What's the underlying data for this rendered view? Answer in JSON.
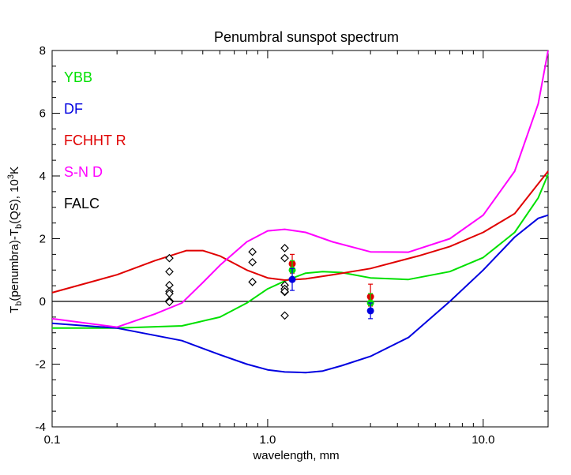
{
  "chart_data": {
    "type": "line",
    "title": "Penumbral sunspot spectrum",
    "xlabel": "wavelength, mm",
    "ylabel": {
      "p1": "T",
      "s1": "b",
      "p2": "(penumbra)-T",
      "s2": "b",
      "p3": "(QS), 10",
      "s3": "3",
      "p4": "K"
    },
    "xscale": "log",
    "xlim": [
      0.1,
      20
    ],
    "ylim": [
      -4,
      8
    ],
    "xticks": [
      0.1,
      1.0,
      10.0
    ],
    "xticklabels": [
      "0.1",
      "1.0",
      "10.0"
    ],
    "yticks": [
      -4,
      -2,
      0,
      2,
      4,
      6,
      8
    ],
    "yticklabels": [
      "-4",
      "-2",
      "0",
      "2",
      "4",
      "6",
      "8"
    ],
    "zero_line": 0,
    "legend_position": "top-left",
    "series": [
      {
        "name": "YBB",
        "color": "#00e000",
        "x": [
          0.1,
          0.2,
          0.4,
          0.6,
          0.8,
          1.0,
          1.2,
          1.5,
          1.8,
          2.2,
          3.0,
          4.5,
          7.0,
          10.0,
          14.0,
          18.0,
          20.0
        ],
        "y": [
          -0.85,
          -0.85,
          -0.78,
          -0.5,
          -0.05,
          0.4,
          0.65,
          0.9,
          0.95,
          0.92,
          0.75,
          0.7,
          0.95,
          1.4,
          2.2,
          3.3,
          4.05
        ]
      },
      {
        "name": "DF",
        "color": "#0000e0",
        "x": [
          0.1,
          0.2,
          0.4,
          0.6,
          0.8,
          1.0,
          1.2,
          1.5,
          1.8,
          2.2,
          3.0,
          4.5,
          7.0,
          10.0,
          14.0,
          18.0,
          20.0
        ],
        "y": [
          -0.7,
          -0.85,
          -1.25,
          -1.7,
          -2.0,
          -2.18,
          -2.25,
          -2.27,
          -2.22,
          -2.05,
          -1.75,
          -1.15,
          0.0,
          1.0,
          2.05,
          2.65,
          2.75
        ]
      },
      {
        "name": "FCHHT R",
        "color": "#e00000",
        "x": [
          0.1,
          0.2,
          0.3,
          0.42,
          0.5,
          0.6,
          0.8,
          1.0,
          1.2,
          1.5,
          2.0,
          3.0,
          5.0,
          7.0,
          10.0,
          14.0,
          20.0
        ],
        "y": [
          0.28,
          0.85,
          1.3,
          1.62,
          1.62,
          1.45,
          1.0,
          0.75,
          0.68,
          0.72,
          0.85,
          1.05,
          1.45,
          1.75,
          2.2,
          2.8,
          4.15
        ]
      },
      {
        "name": "S-N D",
        "color": "#ff00ff",
        "x": [
          0.1,
          0.2,
          0.3,
          0.4,
          0.5,
          0.6,
          0.8,
          1.0,
          1.2,
          1.5,
          2.0,
          3.0,
          4.5,
          7.0,
          10.0,
          14.0,
          18.0,
          20.0
        ],
        "y": [
          -0.55,
          -0.82,
          -0.4,
          -0.05,
          0.6,
          1.15,
          1.9,
          2.25,
          2.3,
          2.2,
          1.9,
          1.58,
          1.57,
          2.0,
          2.75,
          4.15,
          6.3,
          8.0
        ]
      },
      {
        "name": "FALC",
        "color": "#000000",
        "x": [],
        "y": []
      }
    ],
    "observations": [
      {
        "x": 0.35,
        "y": [
          1.38,
          0.95,
          0.52,
          0.32,
          0.25,
          0.02,
          -0.02
        ]
      },
      {
        "x": 0.85,
        "y": [
          1.58,
          1.25,
          0.62
        ]
      },
      {
        "x": 1.2,
        "y": [
          1.7,
          1.38,
          0.52,
          0.4,
          0.3,
          0.32,
          -0.45
        ]
      }
    ],
    "errorbars": [
      {
        "x": 1.3,
        "color": "#e00000",
        "y": 1.2,
        "lo": 0.9,
        "hi": 1.5
      },
      {
        "x": 1.3,
        "color": "#00e000",
        "y": 1.0,
        "lo": 0.7,
        "hi": 1.3
      },
      {
        "x": 1.3,
        "color": "#0000e0",
        "y": 0.7,
        "lo": 0.35,
        "hi": 1.05
      },
      {
        "x": 3.0,
        "color": "#e00000",
        "y": 0.15,
        "lo": -0.15,
        "hi": 0.55
      },
      {
        "x": 3.0,
        "color": "#00e000",
        "y": -0.05,
        "lo": -0.3,
        "hi": 0.25
      },
      {
        "x": 3.0,
        "color": "#0000e0",
        "y": -0.3,
        "lo": -0.55,
        "hi": -0.05
      }
    ]
  }
}
